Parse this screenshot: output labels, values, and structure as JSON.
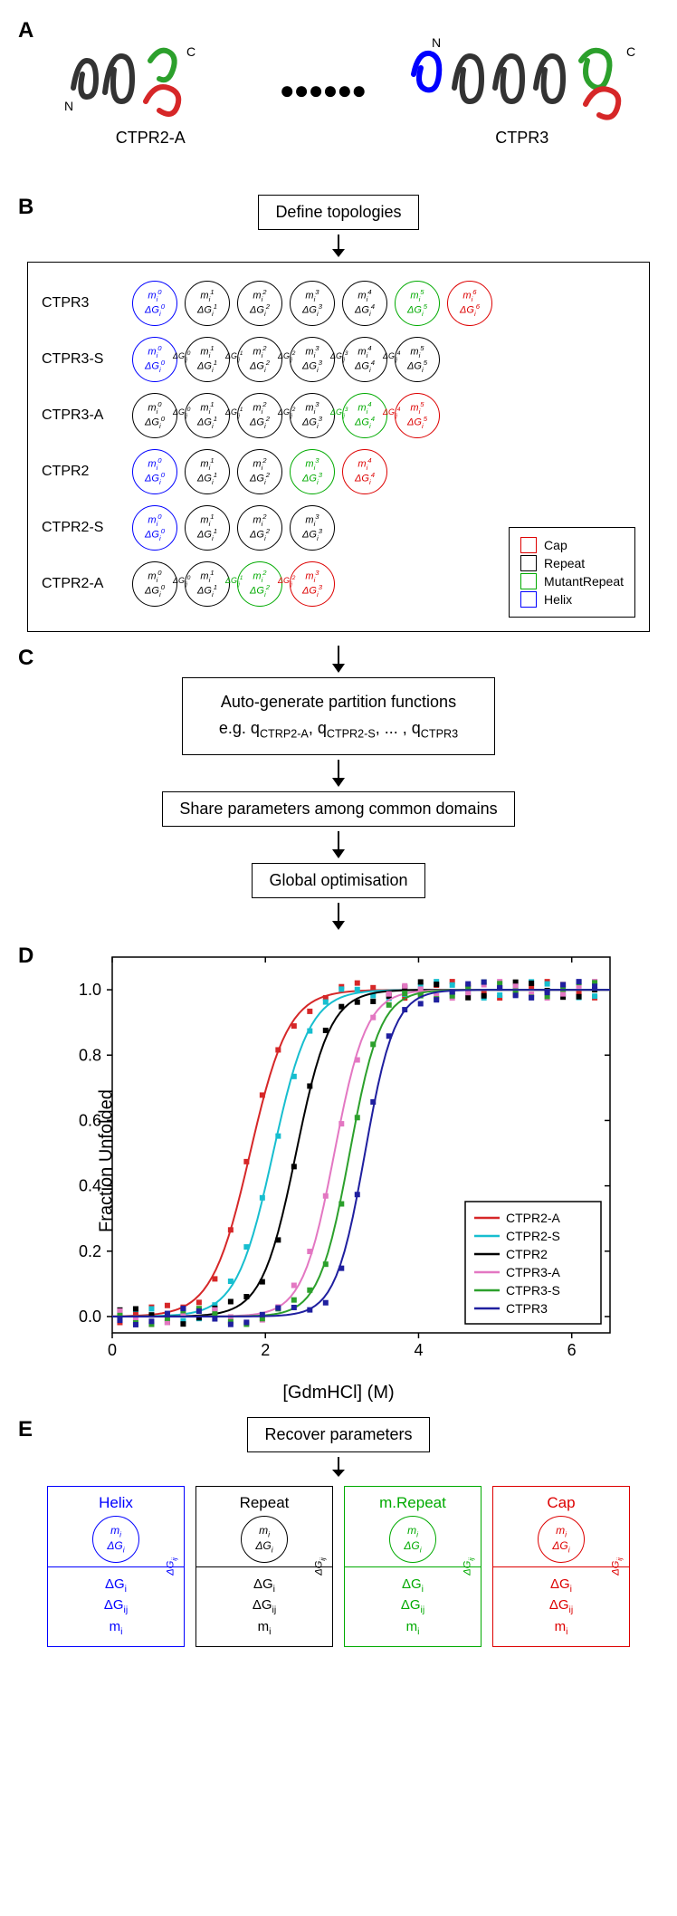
{
  "colors": {
    "helix": "#0000ff",
    "repeat": "#000000",
    "mutant": "#00aa00",
    "cap": "#dd0000",
    "series_ctpr2a": "#d62728",
    "series_ctpr2s": "#17becf",
    "series_ctpr2": "#000000",
    "series_ctpr3a": "#e377c2",
    "series_ctpr3s": "#2ca02c",
    "series_ctpr3": "#1f1f9f",
    "bg": "#ffffff"
  },
  "panelA": {
    "label": "A",
    "left_name": "CTPR2-A",
    "right_name": "CTPR3",
    "dots": "●●●●●●",
    "n_label": "N",
    "c_label": "C"
  },
  "panelB": {
    "label": "B",
    "define_box": "Define topologies",
    "rows": [
      {
        "label": "CTPR3",
        "nodes": [
          "helix",
          "repeat",
          "repeat",
          "repeat",
          "repeat",
          "mutant",
          "cap"
        ],
        "has_edges": false
      },
      {
        "label": "CTPR3-S",
        "nodes": [
          "helix",
          "repeat",
          "repeat",
          "repeat",
          "repeat",
          "repeat"
        ],
        "has_edges": true
      },
      {
        "label": "CTPR3-A",
        "nodes": [
          "repeat",
          "repeat",
          "repeat",
          "repeat",
          "mutant",
          "cap"
        ],
        "has_edges": true
      },
      {
        "label": "CTPR2",
        "nodes": [
          "helix",
          "repeat",
          "repeat",
          "mutant",
          "cap"
        ],
        "has_edges": false
      },
      {
        "label": "CTPR2-S",
        "nodes": [
          "helix",
          "repeat",
          "repeat",
          "repeat"
        ],
        "has_edges": false
      },
      {
        "label": "CTPR2-A",
        "nodes": [
          "repeat",
          "repeat",
          "mutant",
          "cap"
        ],
        "has_edges": true
      }
    ],
    "legend": [
      {
        "color_key": "cap",
        "label": "Cap"
      },
      {
        "color_key": "repeat",
        "label": "Repeat"
      },
      {
        "color_key": "mutant",
        "label": "MutantRepeat"
      },
      {
        "color_key": "helix",
        "label": "Helix"
      }
    ]
  },
  "panelC": {
    "label": "C",
    "box1_line1": "Auto-generate partition functions",
    "box1_line2_prefix": "e.g. q",
    "box1_line2_items": [
      "CTRP2-A",
      "CTPR2-S",
      "...",
      "CTPR3"
    ],
    "box2": "Share parameters among common domains",
    "box3": "Global optimisation"
  },
  "panelD": {
    "label": "D",
    "ylabel": "Fraction Unfolded",
    "xlabel": "[GdmHCl] (M)",
    "xlim": [
      0,
      6.5
    ],
    "ylim": [
      -0.05,
      1.1
    ],
    "xticks": [
      0,
      2,
      4,
      6
    ],
    "yticks": [
      0.0,
      0.2,
      0.4,
      0.6,
      0.8,
      1.0
    ],
    "legend": [
      {
        "name": "CTPR2-A",
        "color_key": "series_ctpr2a"
      },
      {
        "name": "CTPR2-S",
        "color_key": "series_ctpr2s"
      },
      {
        "name": "CTPR2",
        "color_key": "series_ctpr2"
      },
      {
        "name": "CTPR3-A",
        "color_key": "series_ctpr3a"
      },
      {
        "name": "CTPR3-S",
        "color_key": "series_ctpr3s"
      },
      {
        "name": "CTPR3",
        "color_key": "series_ctpr3"
      }
    ],
    "curves": [
      {
        "color_key": "series_ctpr2a",
        "midpoint": 1.8,
        "steepness": 4.0
      },
      {
        "color_key": "series_ctpr2s",
        "midpoint": 2.1,
        "steepness": 4.2
      },
      {
        "color_key": "series_ctpr2",
        "midpoint": 2.4,
        "steepness": 4.5
      },
      {
        "color_key": "series_ctpr3a",
        "midpoint": 2.9,
        "steepness": 4.8
      },
      {
        "color_key": "series_ctpr3s",
        "midpoint": 3.1,
        "steepness": 5.0
      },
      {
        "color_key": "series_ctpr3",
        "midpoint": 3.3,
        "steepness": 5.2
      }
    ]
  },
  "panelE": {
    "label": "E",
    "box_title": "Recover parameters",
    "params": [
      {
        "title": "Helix",
        "color_key": "helix"
      },
      {
        "title": "Repeat",
        "color_key": "repeat"
      },
      {
        "title": "m.Repeat",
        "color_key": "mutant"
      },
      {
        "title": "Cap",
        "color_key": "cap"
      }
    ],
    "circle_lines": [
      "m",
      "ΔG"
    ],
    "side_label": "ΔG",
    "bottom_lines": [
      "ΔG",
      "ΔG",
      "m"
    ]
  }
}
